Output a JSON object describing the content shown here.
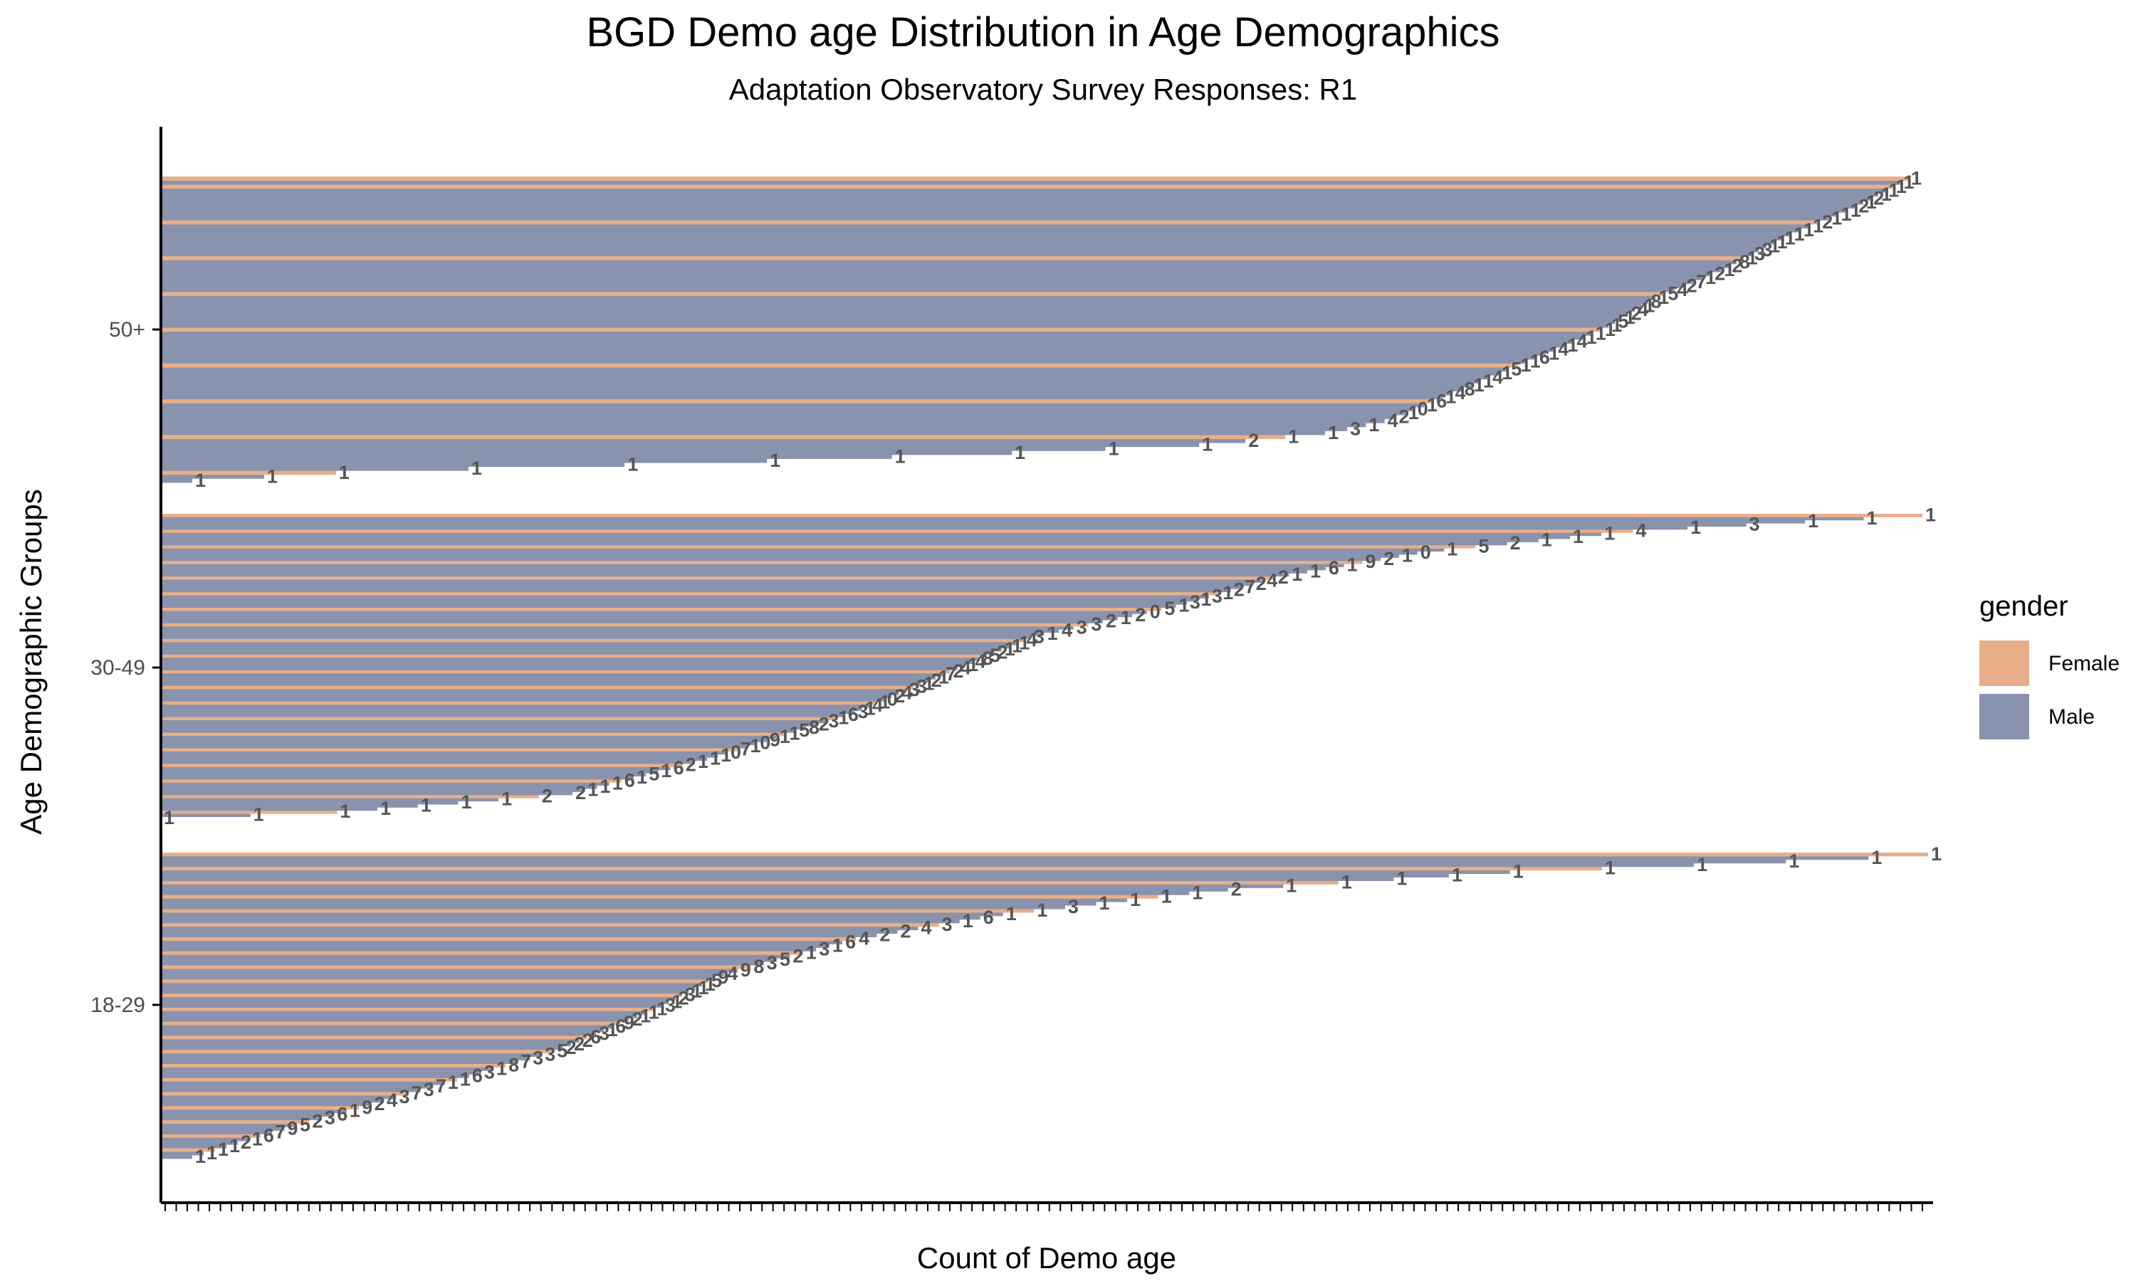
{
  "chart_data": {
    "type": "bar",
    "orientation": "horizontal",
    "title": "BGD Demo age Distribution in Age Demographics",
    "subtitle": "Adaptation Observatory Survey Responses: R1",
    "xlabel": "Count of Demo age",
    "ylabel": "Age Demographic Groups",
    "categories": [
      "18-29",
      "30-49",
      "50+"
    ],
    "legend": {
      "title": "gender",
      "position": "right",
      "entries": [
        {
          "name": "Female",
          "color": "#E8AE8A"
        },
        {
          "name": "Male",
          "color": "#8A93AD"
        }
      ]
    },
    "groups": [
      {
        "category": "18-29",
        "labels": [
          "1",
          "1",
          "1",
          "1",
          "2",
          "1",
          "6",
          "7",
          "9",
          "5",
          "2",
          "3",
          "6",
          "1",
          "9",
          "2",
          "4",
          "3",
          "7",
          "3",
          "7",
          "1",
          "1",
          "6",
          "3",
          "1",
          "8",
          "7",
          "3",
          "3",
          "5",
          "2",
          "2",
          "2",
          "6",
          "3",
          "1",
          "6",
          "9",
          "2",
          "1",
          "1",
          "1",
          "3",
          "1",
          "2",
          "3",
          "1",
          "1",
          "1",
          "5",
          "9",
          "4",
          "9",
          "8",
          "3",
          "5",
          "2",
          "1",
          "3",
          "1",
          "6",
          "4",
          "2",
          "2",
          "4",
          "3",
          "1",
          "6",
          "1",
          "1",
          "3",
          "1",
          "1",
          "1",
          "1",
          "2",
          "1",
          "1",
          "1",
          "1",
          "1",
          "1",
          "1",
          "1",
          "1",
          "1"
        ]
      },
      {
        "category": "30-49",
        "labels": [
          "1",
          "1",
          "1",
          "1",
          "1",
          "1",
          "1",
          "2",
          "2",
          "1",
          "1",
          "1",
          "6",
          "1",
          "5",
          "1",
          "6",
          "2",
          "1",
          "1",
          "1",
          "0",
          "7",
          "1",
          "0",
          "9",
          "1",
          "1",
          "5",
          "8",
          "2",
          "3",
          "1",
          "6",
          "3",
          "1",
          "4",
          "1",
          "0",
          "2",
          "4",
          "3",
          "3",
          "1",
          "2",
          "1",
          "7",
          "2",
          "4",
          "1",
          "4",
          "8",
          "5",
          "2",
          "1",
          "1",
          "1",
          "4",
          "3",
          "1",
          "4",
          "3",
          "3",
          "2",
          "1",
          "2",
          "0",
          "5",
          "1",
          "3",
          "1",
          "3",
          "1",
          "2",
          "7",
          "2",
          "4",
          "2",
          "1",
          "1",
          "6",
          "1",
          "9",
          "2",
          "1",
          "0",
          "1",
          "5",
          "2",
          "1",
          "1",
          "1",
          "4",
          "1",
          "3",
          "1",
          "1",
          "1"
        ]
      },
      {
        "category": "50+",
        "labels": [
          "1",
          "1",
          "1",
          "1",
          "1",
          "1",
          "1",
          "1",
          "1",
          "1",
          "2",
          "1",
          "1",
          "3",
          "1",
          "4",
          "2",
          "1",
          "0",
          "1",
          "6",
          "1",
          "4",
          "8",
          "1",
          "1",
          "4",
          "1",
          "5",
          "1",
          "1",
          "6",
          "1",
          "4",
          "1",
          "4",
          "1",
          "1",
          "1",
          "1",
          "5",
          "1",
          "2",
          "4",
          "1",
          "8",
          "1",
          "5",
          "4",
          "2",
          "7",
          "1",
          "2",
          "1",
          "2",
          "8",
          "1",
          "3",
          "3",
          "1",
          "1",
          "1",
          "1",
          "1",
          "1",
          "2",
          "1",
          "1",
          "1",
          "2",
          "1",
          "2",
          "1",
          "1",
          "1",
          "1",
          "1"
        ]
      }
    ],
    "x_tick_count": 160,
    "grid": false
  }
}
